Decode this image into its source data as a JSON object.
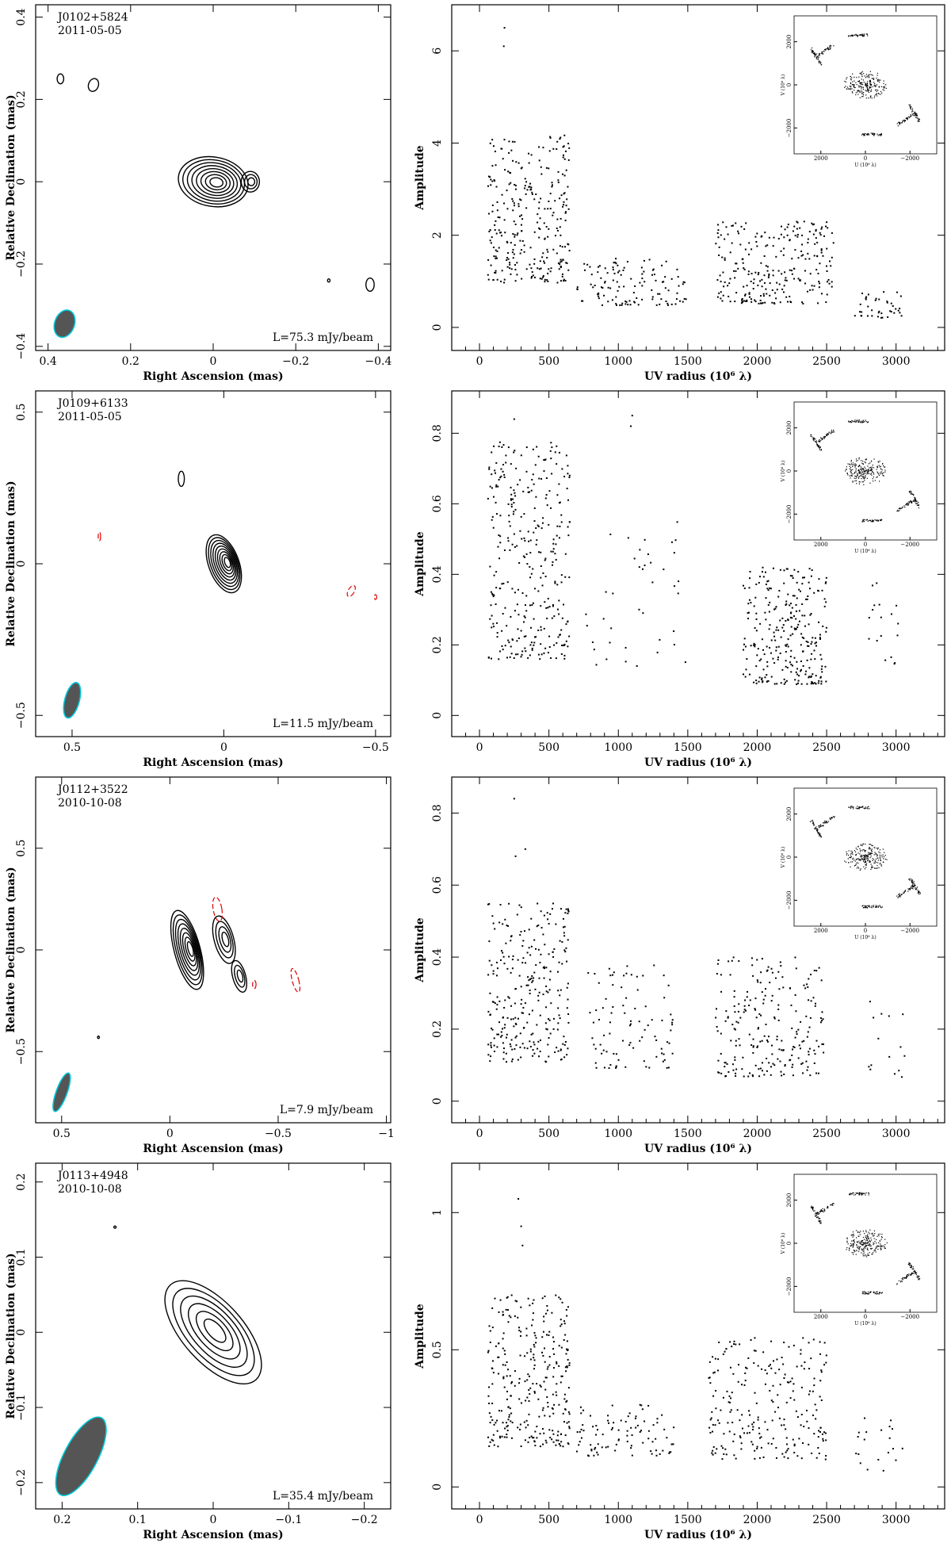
{
  "colors": {
    "beam_fill": "#555555",
    "beam_edge": "#00c8d8",
    "negative_contour": "#e00000"
  },
  "chart_data": [
    {
      "type": "contour",
      "source": "J0102+5824",
      "date": "2011-05-05",
      "peak_label": "L=75.3 mJy/beam",
      "xlabel": "Right Ascension  (mas)",
      "ylabel": "Relative Declination  (mas)",
      "xlim": [
        0.43,
        -0.43
      ],
      "ylim": [
        -0.41,
        0.43
      ],
      "xticks": [
        "0.4",
        "0.2",
        "0",
        "−0.2",
        "−0.4"
      ],
      "yticks": [
        "−0.4",
        "−0.2",
        "0",
        "0.2",
        "0.4"
      ],
      "beam": {
        "x": 0.36,
        "y": -0.345,
        "major": 0.034,
        "minor": 0.024,
        "pa_deg": 20
      },
      "components": [
        {
          "x": 0.0,
          "y": 0.0,
          "sx": 0.085,
          "sy": 0.06,
          "rot": 10,
          "levels": 8
        },
        {
          "x": -0.09,
          "y": 0.0,
          "sx": 0.022,
          "sy": 0.025,
          "rot": 0,
          "levels": 3
        },
        {
          "x": 0.37,
          "y": 0.25,
          "sx": 0.008,
          "sy": 0.012,
          "rot": 0,
          "levels": 1
        },
        {
          "x": 0.29,
          "y": 0.235,
          "sx": 0.012,
          "sy": 0.016,
          "rot": 20,
          "levels": 1
        },
        {
          "x": -0.38,
          "y": -0.25,
          "sx": 0.01,
          "sy": 0.016,
          "rot": 0,
          "levels": 1
        },
        {
          "x": -0.28,
          "y": -0.24,
          "sx": 0.003,
          "sy": 0.004,
          "rot": 0,
          "levels": 1
        }
      ],
      "neg_components": []
    },
    {
      "type": "scatter",
      "xlabel": "UV radius  (10⁶ λ)",
      "ylabel": "Amplitude",
      "xlim": [
        -200,
        3350
      ],
      "ylim": [
        -0.5,
        7.0
      ],
      "xticks": [
        0,
        500,
        1000,
        1500,
        2000,
        2500,
        3000
      ],
      "yticks": [
        0,
        2,
        4,
        6
      ],
      "clusters": [
        {
          "x0": 60,
          "x1": 650,
          "ymin": 0.4,
          "ymax": 4.2,
          "n": 300
        },
        {
          "x0": 700,
          "x1": 1500,
          "ymin": 0.3,
          "ymax": 1.5,
          "n": 120
        },
        {
          "x0": 1700,
          "x1": 2550,
          "ymin": 0.2,
          "ymax": 2.3,
          "n": 260
        },
        {
          "x0": 2700,
          "x1": 3050,
          "ymin": 0.1,
          "ymax": 0.8,
          "n": 40
        }
      ],
      "outliers": [
        [
          180,
          6.5
        ],
        [
          175,
          6.1
        ]
      ],
      "inset": {
        "xlabel": "U (10⁶ λ)",
        "ylabel": "V (10⁶ λ)",
        "xticks": [
          "2000",
          "0",
          "−2000"
        ],
        "yticks": [
          "2000",
          "0",
          "−2000"
        ],
        "xlim": [
          3200,
          -3200
        ],
        "ylim": [
          -3200,
          3200
        ],
        "max_uv": 3000
      }
    },
    {
      "type": "contour",
      "source": "J0109+6133",
      "date": "2011-05-05",
      "peak_label": "L=11.5 mJy/beam",
      "xlabel": "Right Ascension  (mas)",
      "ylabel": "Relative Declination  (mas)",
      "xlim": [
        0.62,
        -0.55
      ],
      "ylim": [
        -0.57,
        0.57
      ],
      "xticks": [
        "0.5",
        "0",
        "−0.5"
      ],
      "yticks": [
        "−0.5",
        "0",
        "0.5"
      ],
      "beam": {
        "x": 0.5,
        "y": -0.45,
        "major": 0.06,
        "minor": 0.024,
        "pa_deg": 15
      },
      "components": [
        {
          "x": 0.0,
          "y": 0.0,
          "sx": 0.05,
          "sy": 0.1,
          "rot": -20,
          "levels": 9
        },
        {
          "x": 0.14,
          "y": 0.28,
          "sx": 0.01,
          "sy": 0.025,
          "rot": 0,
          "levels": 1
        }
      ],
      "neg_components": [
        {
          "x": 0.41,
          "y": 0.09,
          "sx": 0.004,
          "sy": 0.014,
          "rot": 0
        },
        {
          "x": -0.42,
          "y": -0.09,
          "sx": 0.01,
          "sy": 0.02,
          "rot": 30
        },
        {
          "x": -0.5,
          "y": -0.11,
          "sx": 0.003,
          "sy": 0.008,
          "rot": 0
        }
      ]
    },
    {
      "type": "scatter",
      "xlabel": "UV radius  (10⁶ λ)",
      "ylabel": "Amplitude",
      "xlim": [
        -200,
        3350
      ],
      "ylim": [
        -0.06,
        0.92
      ],
      "xticks": [
        0,
        500,
        1000,
        1500,
        2000,
        2500,
        3000
      ],
      "yticks": [
        0,
        0.2,
        0.4,
        0.6,
        0.8
      ],
      "clusters": [
        {
          "x0": 60,
          "x1": 650,
          "ymin": 0.05,
          "ymax": 0.78,
          "n": 330
        },
        {
          "x0": 750,
          "x1": 1500,
          "ymin": 0.06,
          "ymax": 0.55,
          "n": 40
        },
        {
          "x0": 1900,
          "x1": 2500,
          "ymin": 0.03,
          "ymax": 0.42,
          "n": 280
        },
        {
          "x0": 2800,
          "x1": 3050,
          "ymin": 0.1,
          "ymax": 0.38,
          "n": 18
        }
      ],
      "outliers": [
        [
          1100,
          0.85
        ],
        [
          1090,
          0.82
        ],
        [
          250,
          0.84
        ]
      ],
      "inset": {
        "xlabel": "U (10⁶ λ)",
        "ylabel": "V (10⁶ λ)",
        "xticks": [
          "2000",
          "0",
          "−2000"
        ],
        "yticks": [
          "2000",
          "0",
          "−2000"
        ],
        "xlim": [
          3200,
          -3200
        ],
        "ylim": [
          -3200,
          3200
        ],
        "max_uv": 2600
      }
    },
    {
      "type": "contour",
      "source": "J0112+3522",
      "date": "2010-10-08",
      "peak_label": "L=7.9 mJy/beam",
      "xlabel": "Right Ascension  (mas)",
      "ylabel": "Relative Declination  (mas)",
      "xlim": [
        0.62,
        -1.02
      ],
      "ylim": [
        -0.85,
        0.85
      ],
      "xticks": [
        "0.5",
        "0",
        "−0.5",
        "−1"
      ],
      "yticks": [
        "−0.5",
        "0",
        "0.5"
      ],
      "beam": {
        "x": 0.5,
        "y": -0.7,
        "major": 0.1,
        "minor": 0.025,
        "pa_deg": 20
      },
      "components": [
        {
          "x": -0.08,
          "y": 0.0,
          "sx": 0.06,
          "sy": 0.2,
          "rot": -15,
          "levels": 8
        },
        {
          "x": -0.25,
          "y": 0.05,
          "sx": 0.045,
          "sy": 0.12,
          "rot": -15,
          "levels": 4
        },
        {
          "x": -0.32,
          "y": -0.13,
          "sx": 0.03,
          "sy": 0.08,
          "rot": -15,
          "levels": 3
        },
        {
          "x": 0.33,
          "y": -0.43,
          "sx": 0.003,
          "sy": 0.006,
          "rot": 0,
          "levels": 1
        }
      ],
      "neg_components": [
        {
          "x": -0.22,
          "y": 0.2,
          "sx": 0.02,
          "sy": 0.06,
          "rot": -10
        },
        {
          "x": -0.39,
          "y": -0.17,
          "sx": 0.008,
          "sy": 0.02,
          "rot": 0
        },
        {
          "x": -0.58,
          "y": -0.15,
          "sx": 0.015,
          "sy": 0.06,
          "rot": -15
        }
      ]
    },
    {
      "type": "scatter",
      "xlabel": "UV radius  (10⁶ λ)",
      "ylabel": "Amplitude",
      "xlim": [
        -200,
        3350
      ],
      "ylim": [
        -0.06,
        0.9
      ],
      "xticks": [
        0,
        500,
        1000,
        1500,
        2000,
        2500,
        3000
      ],
      "yticks": [
        0,
        0.2,
        0.4,
        0.6,
        0.8
      ],
      "clusters": [
        {
          "x0": 60,
          "x1": 650,
          "ymin": 0.03,
          "ymax": 0.55,
          "n": 280
        },
        {
          "x0": 780,
          "x1": 1400,
          "ymin": 0.04,
          "ymax": 0.38,
          "n": 90
        },
        {
          "x0": 1700,
          "x1": 2480,
          "ymin": 0.01,
          "ymax": 0.4,
          "n": 230
        },
        {
          "x0": 2800,
          "x1": 3070,
          "ymin": 0.02,
          "ymax": 0.28,
          "n": 15
        }
      ],
      "outliers": [
        [
          250,
          0.84
        ],
        [
          260,
          0.68
        ],
        [
          330,
          0.7
        ]
      ],
      "inset": {
        "xlabel": "U (10⁶ λ)",
        "ylabel": "V (10⁶ λ)",
        "xticks": [
          "2000",
          "0",
          "−2000"
        ],
        "yticks": [
          "2000",
          "0",
          "−2000"
        ],
        "xlim": [
          3200,
          -3200
        ],
        "ylim": [
          -3200,
          3200
        ],
        "max_uv": 2600
      }
    },
    {
      "type": "contour",
      "source": "J0113+4948",
      "date": "2010-10-08",
      "peak_label": "L=35.4 mJy/beam",
      "xlabel": "Right Ascension  (mas)",
      "ylabel": "Relative Declination  (mas)",
      "xlim": [
        0.235,
        -0.235
      ],
      "ylim": [
        -0.235,
        0.225
      ],
      "xticks": [
        "0.2",
        "0.1",
        "0",
        "−0.1",
        "−0.2"
      ],
      "yticks": [
        "−0.2",
        "−0.1",
        "0",
        "0.1",
        "0.2"
      ],
      "beam": {
        "x": 0.175,
        "y": -0.165,
        "major": 0.058,
        "minor": 0.022,
        "pa_deg": 28
      },
      "components": [
        {
          "x": 0.0,
          "y": 0.0,
          "sx": 0.04,
          "sy": 0.085,
          "rot": -42,
          "levels": 6
        },
        {
          "x": 0.13,
          "y": 0.14,
          "sx": 0.0015,
          "sy": 0.0015,
          "rot": 0,
          "levels": 1
        }
      ],
      "neg_components": []
    },
    {
      "type": "scatter",
      "xlabel": "UV radius  (10⁶ λ)",
      "ylabel": "Amplitude",
      "xlim": [
        -200,
        3350
      ],
      "ylim": [
        -0.08,
        1.18
      ],
      "xticks": [
        0,
        500,
        1000,
        1500,
        2000,
        2500,
        3000
      ],
      "yticks": [
        0,
        0.5,
        1
      ],
      "clusters": [
        {
          "x0": 60,
          "x1": 650,
          "ymin": 0.05,
          "ymax": 0.7,
          "n": 300
        },
        {
          "x0": 700,
          "x1": 1400,
          "ymin": 0.08,
          "ymax": 0.3,
          "n": 90
        },
        {
          "x0": 1650,
          "x1": 2500,
          "ymin": 0.02,
          "ymax": 0.55,
          "n": 240
        },
        {
          "x0": 2700,
          "x1": 3050,
          "ymin": 0.02,
          "ymax": 0.28,
          "n": 20
        }
      ],
      "outliers": [
        [
          280,
          1.05
        ],
        [
          300,
          0.95
        ],
        [
          310,
          0.88
        ],
        [
          1880,
          0.18
        ]
      ],
      "inset": {
        "xlabel": "U (10⁶ λ)",
        "ylabel": "V (10⁶ λ)",
        "xticks": [
          "2000",
          "0",
          "−2000"
        ],
        "yticks": [
          "2000",
          "0",
          "−2000"
        ],
        "xlim": [
          3200,
          -3200
        ],
        "ylim": [
          -3200,
          3200
        ],
        "max_uv": 2600
      }
    }
  ]
}
